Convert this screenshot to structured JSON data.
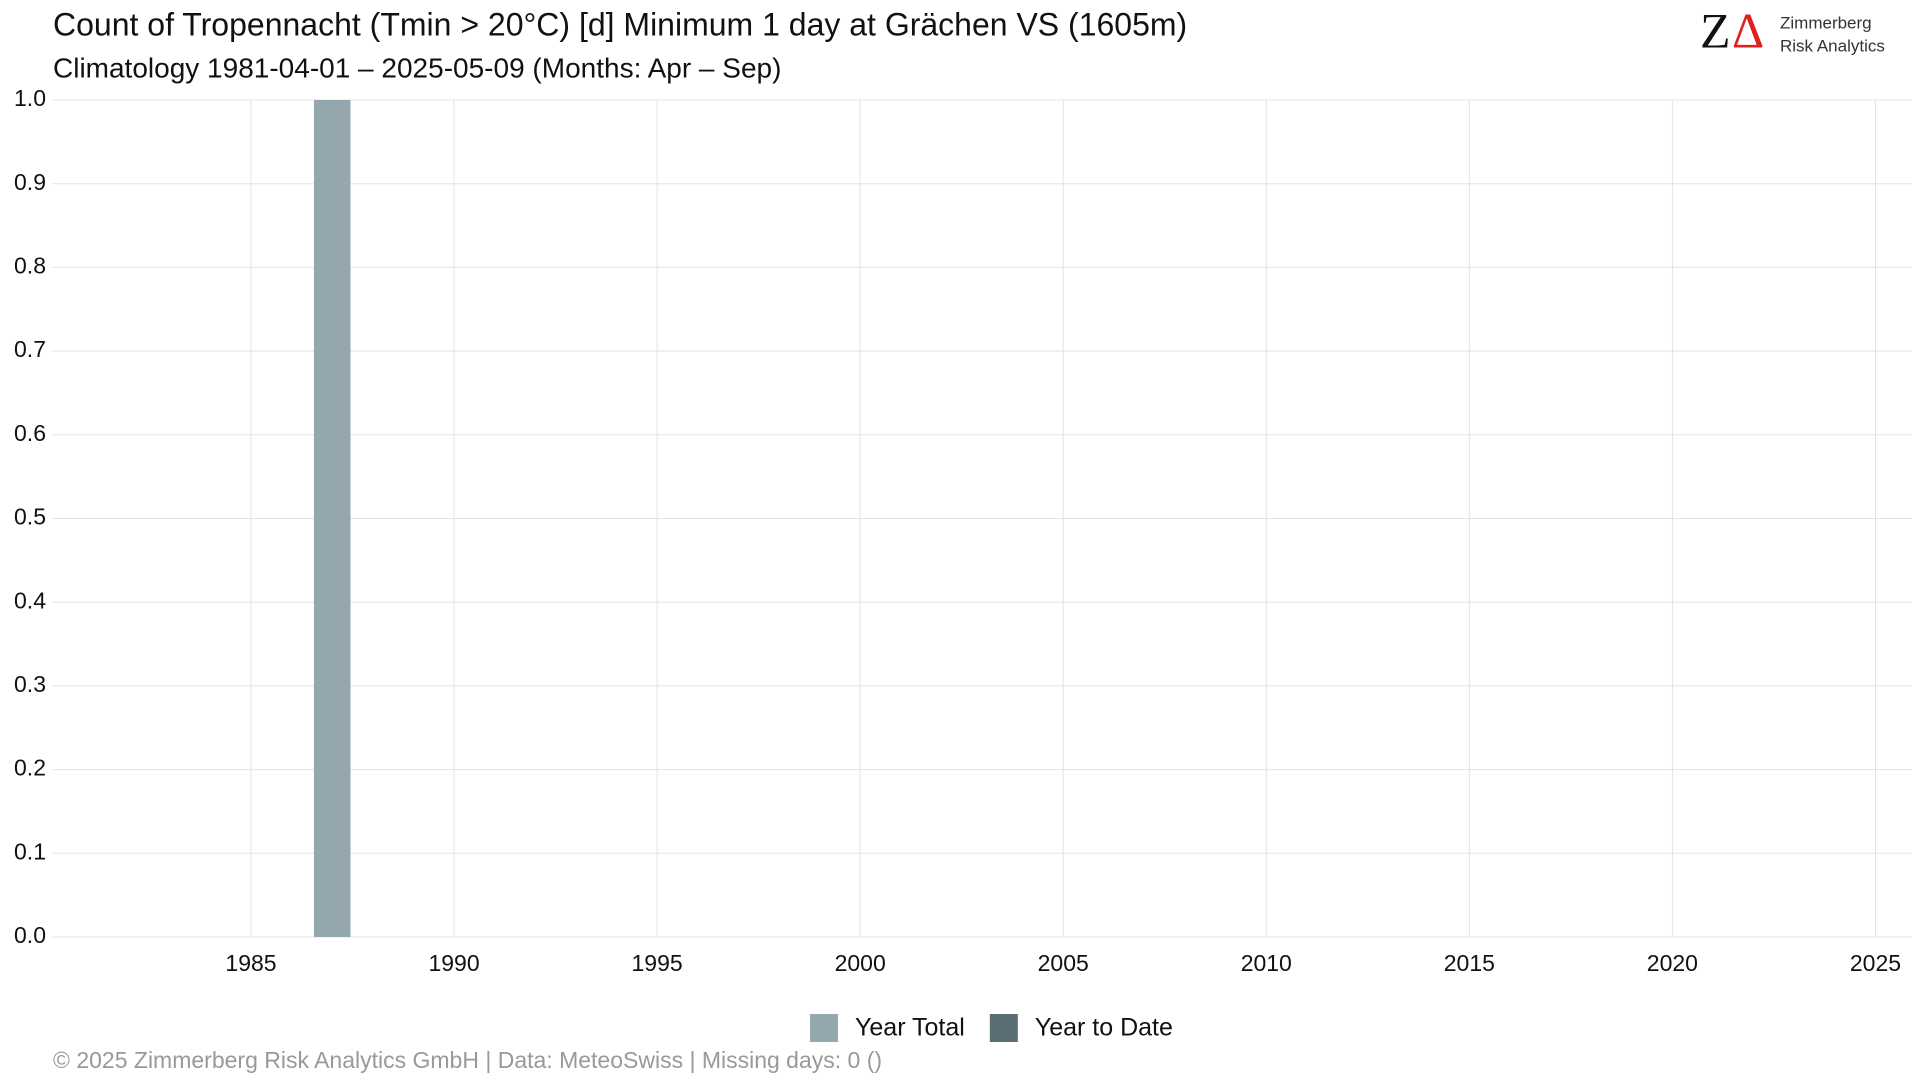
{
  "chart_data": {
    "type": "bar",
    "title": "Count of Tropennacht (Tmin > 20°C) [d] Minimum 1 day at Grächen  VS (1605m)",
    "subtitle": "Climatology 1981-04-01 – 2025-05-09 (Months: Apr – Sep)",
    "x": [
      1987
    ],
    "series": [
      {
        "name": "Year Total",
        "color": "#95a7ae",
        "values": [
          1
        ]
      },
      {
        "name": "Year to Date",
        "color": "#5a6e74",
        "values": [
          null
        ]
      }
    ],
    "xlim": [
      1980.1,
      2025.9
    ],
    "xticks": [
      1985,
      1990,
      1995,
      2000,
      2005,
      2010,
      2015,
      2020,
      2025
    ],
    "ylim": [
      0,
      1
    ],
    "yticks": [
      {
        "value": 0,
        "label": "0.0"
      },
      0.1,
      0.2,
      0.3,
      0.4,
      0.5,
      0.6,
      0.7,
      0.8,
      0.9,
      {
        "value": 1,
        "label": "1.0"
      }
    ],
    "grid": true,
    "legend": "bottom",
    "caption": "©  2025 Zimmerberg Risk Analytics GmbH | Data: MeteoSwiss | Missing days: 0 ()"
  },
  "logo": {
    "z": "Z",
    "delta": "Δ",
    "line1": "Zimmerberg",
    "line2": "Risk Analytics"
  }
}
